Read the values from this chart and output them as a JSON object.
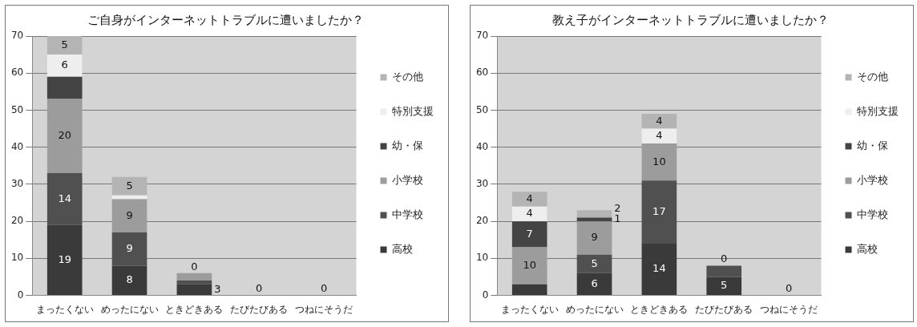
{
  "chart_data": [
    {
      "type": "bar",
      "title": "ご自身がインターネットトラブルに遭いましたか？",
      "stacked": true,
      "categories": [
        "まったくない",
        "めったにない",
        "ときどきある",
        "たびたびある",
        "つねにそうだ"
      ],
      "ylim": [
        0,
        70
      ],
      "yticks": [
        0,
        10,
        20,
        30,
        40,
        50,
        60,
        70
      ],
      "grid": "y",
      "legend": "right",
      "series": [
        {
          "name": "高校",
          "color": "#3a3a3a",
          "values": [
            19,
            8,
            3,
            0,
            0
          ],
          "value_labels": [
            "19",
            "8",
            "3",
            null,
            null
          ]
        },
        {
          "name": "中学校",
          "color": "#505050",
          "values": [
            14,
            9,
            1,
            0,
            0
          ],
          "value_labels": [
            "14",
            "9",
            null,
            null,
            null
          ]
        },
        {
          "name": "小学校",
          "color": "#9c9c9c",
          "values": [
            20,
            9,
            2,
            0,
            0
          ],
          "value_labels": [
            "20",
            "9",
            null,
            null,
            null
          ]
        },
        {
          "name": "幼・保",
          "color": "#444444",
          "values": [
            6,
            0,
            0,
            0,
            0
          ],
          "value_labels": [
            null,
            null,
            null,
            null,
            null
          ]
        },
        {
          "name": "特別支援",
          "color": "#eeeeee",
          "values": [
            6,
            1,
            0,
            0,
            0
          ],
          "value_labels": [
            "6",
            null,
            null,
            null,
            null
          ]
        },
        {
          "name": "その他",
          "color": "#b4b4b4",
          "values": [
            5,
            5,
            0,
            0,
            0
          ],
          "value_labels": [
            "5",
            "5",
            "0",
            "0",
            "0"
          ]
        }
      ]
    },
    {
      "type": "bar",
      "title": "教え子がインターネットトラブルに遭いましたか？",
      "stacked": true,
      "categories": [
        "まったくない",
        "めったにない",
        "ときどきある",
        "たびたびある",
        "つねにそうだ"
      ],
      "ylim": [
        0,
        70
      ],
      "yticks": [
        0,
        10,
        20,
        30,
        40,
        50,
        60,
        70
      ],
      "grid": "y",
      "legend": "right",
      "series": [
        {
          "name": "高校",
          "color": "#3a3a3a",
          "values": [
            3,
            6,
            14,
            5,
            0
          ],
          "value_labels": [
            null,
            "6",
            "14",
            "5",
            null
          ]
        },
        {
          "name": "中学校",
          "color": "#505050",
          "values": [
            0,
            5,
            17,
            3,
            0
          ],
          "value_labels": [
            null,
            "5",
            "17",
            null,
            null
          ]
        },
        {
          "name": "小学校",
          "color": "#9c9c9c",
          "values": [
            10,
            9,
            10,
            0,
            0
          ],
          "value_labels": [
            "10",
            "9",
            "10",
            null,
            null
          ]
        },
        {
          "name": "幼・保",
          "color": "#444444",
          "values": [
            7,
            1,
            0,
            0,
            0
          ],
          "value_labels": [
            "7",
            "1",
            null,
            null,
            null
          ]
        },
        {
          "name": "特別支援",
          "color": "#eeeeee",
          "values": [
            4,
            0,
            4,
            0,
            0
          ],
          "value_labels": [
            "4",
            null,
            "4",
            null,
            null
          ]
        },
        {
          "name": "その他",
          "color": "#b4b4b4",
          "values": [
            4,
            2,
            4,
            0,
            0
          ],
          "value_labels": [
            "4",
            "2",
            "4",
            "0",
            "0"
          ]
        }
      ]
    }
  ]
}
